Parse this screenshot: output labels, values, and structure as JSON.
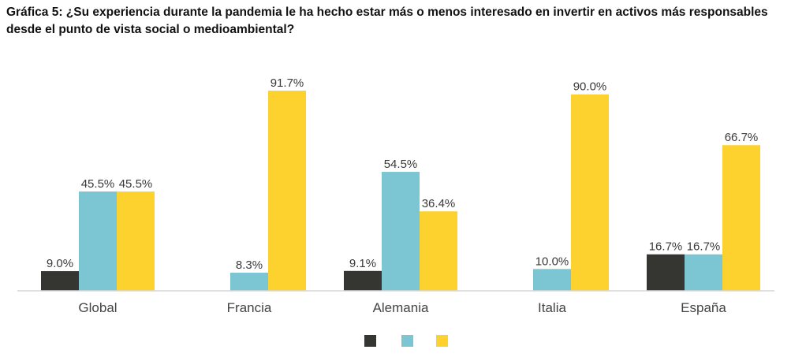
{
  "chart_data": {
    "type": "bar",
    "title": "Gráfica 5: ¿Su experiencia durante la pandemia le ha hecho estar más o menos interesado en invertir en activos más responsables desde el punto de vista social o medioambiental?",
    "categories": [
      "Global",
      "Francia",
      "Alemania",
      "Italia",
      "España"
    ],
    "series": [
      {
        "name": "",
        "color": "#353632",
        "values": [
          9.0,
          0,
          9.1,
          0,
          16.7
        ],
        "labels": [
          "9.0%",
          "",
          "9.1%",
          "",
          "16.7%"
        ]
      },
      {
        "name": "",
        "color": "#7cc6d3",
        "values": [
          45.5,
          8.3,
          54.5,
          10.0,
          16.7
        ],
        "labels": [
          "45.5%",
          "8.3%",
          "54.5%",
          "10.0%",
          "16.7%"
        ]
      },
      {
        "name": "",
        "color": "#fdd22f",
        "values": [
          45.5,
          91.7,
          36.4,
          90.0,
          66.7
        ],
        "labels": [
          "45.5%",
          "91.7%",
          "36.4%",
          "90.0%",
          "66.7%"
        ]
      }
    ],
    "ylim": [
      0,
      100
    ],
    "xlabel": "",
    "ylabel": "",
    "grid": false,
    "legend_position": "bottom-center"
  }
}
